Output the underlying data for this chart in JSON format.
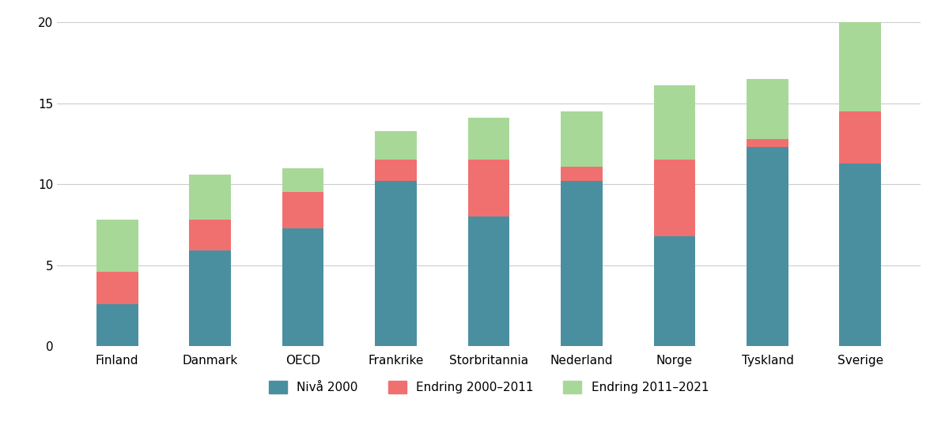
{
  "categories": [
    "Finland",
    "Danmark",
    "OECD",
    "Frankrike",
    "Storbritannia",
    "Nederland",
    "Norge",
    "Tyskland",
    "Sverige"
  ],
  "niva_2000": [
    2.6,
    5.9,
    7.3,
    10.2,
    8.0,
    10.2,
    6.8,
    12.3,
    11.3
  ],
  "endring_2000_2011": [
    2.0,
    1.9,
    2.2,
    1.3,
    3.5,
    0.9,
    4.7,
    0.5,
    3.2
  ],
  "endring_2011_2021": [
    3.2,
    2.8,
    1.5,
    1.8,
    2.6,
    3.4,
    4.6,
    3.7,
    5.5
  ],
  "color_niva": "#4a8fa0",
  "color_endring_2011": "#f07070",
  "color_endring_2021": "#a8d898",
  "legend_labels": [
    "Nivå 2000",
    "Endring 2000–2011",
    "Endring 2011–2021"
  ],
  "ylim": [
    0,
    20
  ],
  "yticks": [
    0,
    5,
    10,
    15,
    20
  ],
  "background_color": "#ffffff",
  "bar_width": 0.45,
  "figsize": [
    12.0,
    5.62
  ],
  "dpi": 100
}
